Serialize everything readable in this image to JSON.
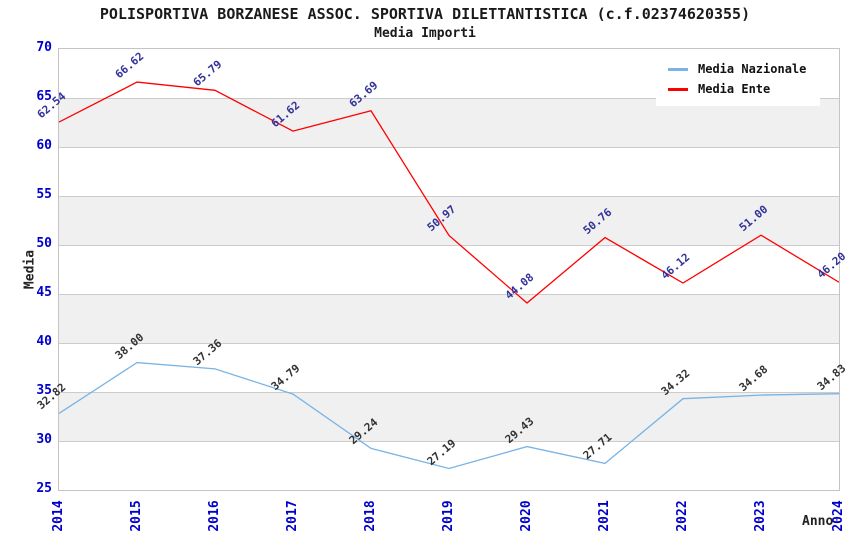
{
  "chart_data": {
    "type": "line",
    "title": "POLISPORTIVA BORZANESE ASSOC. SPORTIVA DILETTANTISTICA (c.f.02374620355)",
    "subtitle": "Media Importi",
    "xlabel": "Anno",
    "ylabel": "Media",
    "ylim": [
      25,
      70
    ],
    "ytick_step": 5,
    "grid": true,
    "banded_background": true,
    "legend_position": "top-right",
    "categories": [
      "2014",
      "2015",
      "2016",
      "2017",
      "2018",
      "2019",
      "2020",
      "2021",
      "2022",
      "2023",
      "2024"
    ],
    "series": [
      {
        "name": "Media Nazionale",
        "color": "#78b4e6",
        "label_color": "#333333",
        "values": [
          32.82,
          38.0,
          37.36,
          34.79,
          29.24,
          27.19,
          29.43,
          27.71,
          34.32,
          34.68,
          34.83
        ]
      },
      {
        "name": "Media Ente",
        "color": "#ff0000",
        "label_color": "#333399",
        "values": [
          62.54,
          66.62,
          65.79,
          61.62,
          63.69,
          50.97,
          44.08,
          50.76,
          46.12,
          51.0,
          46.2
        ]
      }
    ],
    "colors": {
      "tick_labels": "#0000cc",
      "gridline": "#cccccc",
      "band": "#f0f0f0",
      "frame": "#c4c4c4"
    }
  }
}
